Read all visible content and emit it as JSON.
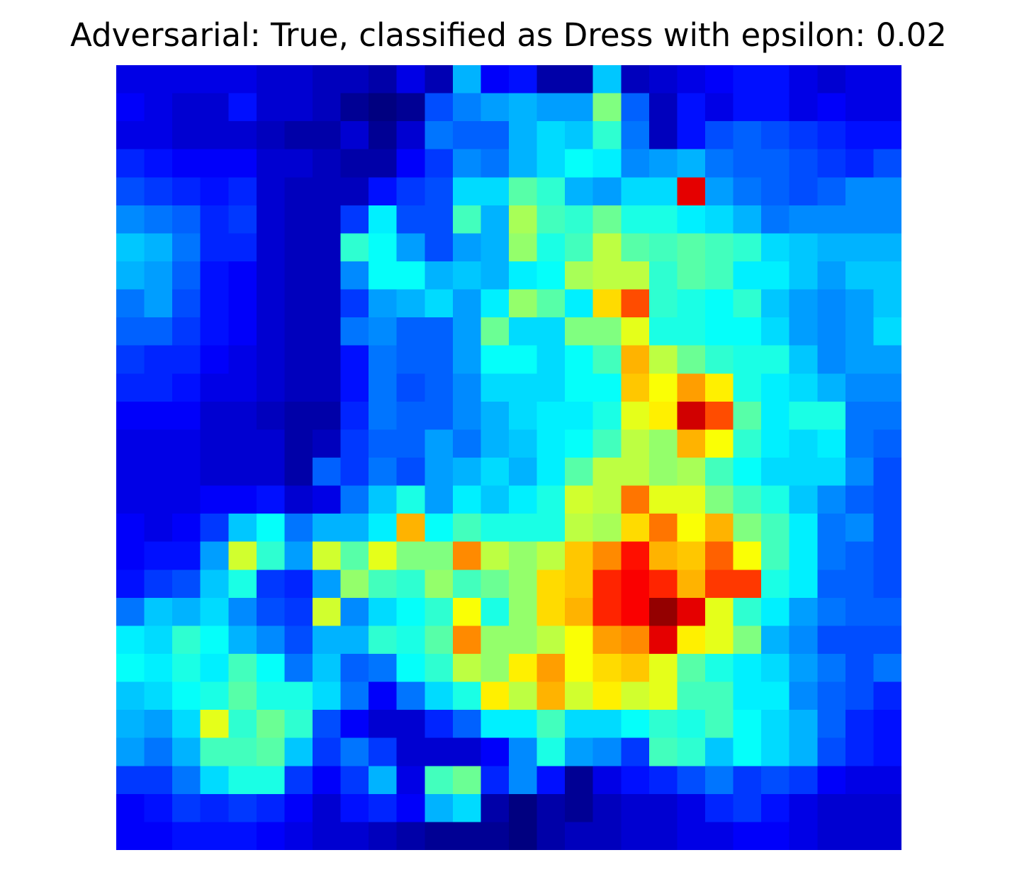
{
  "chart_data": {
    "type": "heatmap",
    "title": "Adversarial: True, classified as Dress with epsilon: 0.02",
    "colormap": "jet",
    "axes_visible": false,
    "grid": false,
    "rows": 28,
    "cols": 28,
    "vmin": 0,
    "vmax": 1,
    "values": [
      [
        0.1,
        0.1,
        0.1,
        0.1,
        0.1,
        0.08,
        0.08,
        0.06,
        0.06,
        0.04,
        0.1,
        0.05,
        0.3,
        0.12,
        0.14,
        0.04,
        0.04,
        0.32,
        0.06,
        0.08,
        0.1,
        0.12,
        0.14,
        0.14,
        0.1,
        0.08,
        0.1,
        0.1
      ],
      [
        0.12,
        0.1,
        0.08,
        0.08,
        0.14,
        0.08,
        0.08,
        0.06,
        0.02,
        0.0,
        0.02,
        0.2,
        0.25,
        0.28,
        0.3,
        0.28,
        0.28,
        0.5,
        0.22,
        0.06,
        0.14,
        0.1,
        0.14,
        0.14,
        0.1,
        0.12,
        0.1,
        0.1
      ],
      [
        0.1,
        0.1,
        0.08,
        0.08,
        0.08,
        0.06,
        0.04,
        0.04,
        0.08,
        0.02,
        0.08,
        0.24,
        0.22,
        0.22,
        0.3,
        0.34,
        0.32,
        0.42,
        0.24,
        0.06,
        0.14,
        0.2,
        0.22,
        0.2,
        0.18,
        0.16,
        0.14,
        0.14
      ],
      [
        0.16,
        0.14,
        0.12,
        0.12,
        0.12,
        0.08,
        0.08,
        0.06,
        0.04,
        0.04,
        0.12,
        0.18,
        0.26,
        0.24,
        0.3,
        0.34,
        0.38,
        0.36,
        0.26,
        0.28,
        0.3,
        0.24,
        0.22,
        0.22,
        0.2,
        0.18,
        0.16,
        0.2
      ],
      [
        0.2,
        0.18,
        0.16,
        0.14,
        0.16,
        0.08,
        0.06,
        0.06,
        0.06,
        0.14,
        0.18,
        0.2,
        0.34,
        0.34,
        0.46,
        0.42,
        0.3,
        0.28,
        0.34,
        0.34,
        0.9,
        0.28,
        0.24,
        0.22,
        0.2,
        0.22,
        0.26,
        0.26
      ],
      [
        0.26,
        0.24,
        0.22,
        0.16,
        0.18,
        0.08,
        0.06,
        0.06,
        0.18,
        0.36,
        0.2,
        0.2,
        0.44,
        0.3,
        0.54,
        0.44,
        0.42,
        0.48,
        0.4,
        0.4,
        0.36,
        0.34,
        0.3,
        0.24,
        0.26,
        0.26,
        0.26,
        0.26
      ],
      [
        0.32,
        0.3,
        0.24,
        0.16,
        0.16,
        0.08,
        0.06,
        0.06,
        0.42,
        0.38,
        0.28,
        0.2,
        0.28,
        0.3,
        0.52,
        0.4,
        0.44,
        0.56,
        0.46,
        0.44,
        0.46,
        0.44,
        0.42,
        0.34,
        0.32,
        0.3,
        0.3,
        0.3
      ],
      [
        0.3,
        0.28,
        0.22,
        0.14,
        0.12,
        0.08,
        0.06,
        0.06,
        0.26,
        0.38,
        0.38,
        0.3,
        0.32,
        0.3,
        0.36,
        0.38,
        0.54,
        0.56,
        0.56,
        0.42,
        0.46,
        0.44,
        0.36,
        0.36,
        0.32,
        0.28,
        0.32,
        0.32
      ],
      [
        0.24,
        0.28,
        0.2,
        0.14,
        0.12,
        0.08,
        0.06,
        0.06,
        0.18,
        0.28,
        0.3,
        0.34,
        0.28,
        0.36,
        0.52,
        0.46,
        0.36,
        0.66,
        0.8,
        0.42,
        0.4,
        0.38,
        0.42,
        0.32,
        0.28,
        0.26,
        0.28,
        0.32
      ],
      [
        0.22,
        0.22,
        0.18,
        0.14,
        0.12,
        0.08,
        0.06,
        0.06,
        0.24,
        0.26,
        0.22,
        0.22,
        0.28,
        0.48,
        0.34,
        0.34,
        0.5,
        0.5,
        0.6,
        0.4,
        0.4,
        0.38,
        0.38,
        0.34,
        0.28,
        0.26,
        0.28,
        0.34
      ],
      [
        0.18,
        0.16,
        0.16,
        0.12,
        0.1,
        0.08,
        0.06,
        0.06,
        0.14,
        0.24,
        0.22,
        0.22,
        0.28,
        0.38,
        0.38,
        0.34,
        0.38,
        0.44,
        0.7,
        0.56,
        0.48,
        0.42,
        0.4,
        0.4,
        0.32,
        0.26,
        0.28,
        0.28
      ],
      [
        0.16,
        0.16,
        0.14,
        0.1,
        0.1,
        0.08,
        0.06,
        0.06,
        0.14,
        0.24,
        0.2,
        0.22,
        0.26,
        0.34,
        0.34,
        0.34,
        0.38,
        0.38,
        0.68,
        0.62,
        0.72,
        0.64,
        0.4,
        0.36,
        0.34,
        0.3,
        0.26,
        0.26
      ],
      [
        0.12,
        0.12,
        0.12,
        0.08,
        0.08,
        0.06,
        0.04,
        0.04,
        0.16,
        0.24,
        0.22,
        0.22,
        0.26,
        0.3,
        0.34,
        0.36,
        0.36,
        0.4,
        0.6,
        0.64,
        0.92,
        0.8,
        0.46,
        0.36,
        0.4,
        0.4,
        0.24,
        0.24
      ],
      [
        0.1,
        0.1,
        0.1,
        0.08,
        0.08,
        0.08,
        0.04,
        0.06,
        0.18,
        0.22,
        0.22,
        0.28,
        0.24,
        0.3,
        0.32,
        0.36,
        0.38,
        0.44,
        0.56,
        0.52,
        0.7,
        0.62,
        0.42,
        0.36,
        0.34,
        0.36,
        0.24,
        0.22
      ],
      [
        0.1,
        0.1,
        0.1,
        0.08,
        0.08,
        0.08,
        0.04,
        0.22,
        0.18,
        0.24,
        0.2,
        0.28,
        0.3,
        0.34,
        0.3,
        0.36,
        0.46,
        0.56,
        0.56,
        0.52,
        0.54,
        0.44,
        0.38,
        0.34,
        0.34,
        0.34,
        0.26,
        0.2
      ],
      [
        0.1,
        0.1,
        0.1,
        0.12,
        0.12,
        0.14,
        0.08,
        0.1,
        0.24,
        0.32,
        0.4,
        0.28,
        0.36,
        0.32,
        0.36,
        0.4,
        0.58,
        0.56,
        0.76,
        0.6,
        0.6,
        0.5,
        0.44,
        0.4,
        0.32,
        0.26,
        0.22,
        0.2
      ],
      [
        0.12,
        0.1,
        0.12,
        0.18,
        0.32,
        0.38,
        0.24,
        0.3,
        0.3,
        0.36,
        0.7,
        0.38,
        0.44,
        0.4,
        0.4,
        0.4,
        0.56,
        0.54,
        0.66,
        0.76,
        0.62,
        0.7,
        0.5,
        0.44,
        0.36,
        0.24,
        0.26,
        0.2
      ],
      [
        0.12,
        0.14,
        0.14,
        0.28,
        0.58,
        0.42,
        0.28,
        0.58,
        0.46,
        0.6,
        0.5,
        0.5,
        0.74,
        0.56,
        0.52,
        0.56,
        0.68,
        0.74,
        0.86,
        0.7,
        0.68,
        0.78,
        0.62,
        0.44,
        0.36,
        0.24,
        0.22,
        0.2
      ],
      [
        0.14,
        0.18,
        0.2,
        0.32,
        0.4,
        0.18,
        0.16,
        0.28,
        0.52,
        0.44,
        0.42,
        0.52,
        0.44,
        0.48,
        0.52,
        0.66,
        0.68,
        0.84,
        0.88,
        0.84,
        0.7,
        0.82,
        0.82,
        0.4,
        0.36,
        0.22,
        0.22,
        0.2
      ],
      [
        0.24,
        0.32,
        0.3,
        0.34,
        0.26,
        0.2,
        0.18,
        0.58,
        0.26,
        0.34,
        0.38,
        0.42,
        0.62,
        0.4,
        0.52,
        0.66,
        0.7,
        0.84,
        0.88,
        0.98,
        0.9,
        0.6,
        0.42,
        0.36,
        0.28,
        0.24,
        0.22,
        0.22
      ],
      [
        0.36,
        0.34,
        0.42,
        0.38,
        0.3,
        0.26,
        0.2,
        0.3,
        0.3,
        0.42,
        0.4,
        0.46,
        0.74,
        0.52,
        0.52,
        0.56,
        0.62,
        0.72,
        0.74,
        0.9,
        0.64,
        0.6,
        0.5,
        0.3,
        0.26,
        0.2,
        0.2,
        0.2
      ],
      [
        0.38,
        0.36,
        0.4,
        0.36,
        0.44,
        0.38,
        0.24,
        0.32,
        0.22,
        0.24,
        0.38,
        0.42,
        0.56,
        0.52,
        0.64,
        0.72,
        0.62,
        0.66,
        0.68,
        0.6,
        0.46,
        0.4,
        0.36,
        0.34,
        0.28,
        0.24,
        0.2,
        0.24
      ],
      [
        0.32,
        0.34,
        0.38,
        0.4,
        0.46,
        0.4,
        0.4,
        0.34,
        0.24,
        0.12,
        0.24,
        0.34,
        0.4,
        0.64,
        0.56,
        0.7,
        0.58,
        0.64,
        0.58,
        0.6,
        0.44,
        0.44,
        0.36,
        0.36,
        0.26,
        0.22,
        0.2,
        0.16
      ],
      [
        0.3,
        0.28,
        0.34,
        0.6,
        0.42,
        0.48,
        0.42,
        0.2,
        0.12,
        0.08,
        0.08,
        0.16,
        0.22,
        0.36,
        0.36,
        0.44,
        0.34,
        0.34,
        0.38,
        0.42,
        0.4,
        0.44,
        0.38,
        0.34,
        0.3,
        0.22,
        0.16,
        0.14
      ],
      [
        0.28,
        0.24,
        0.3,
        0.44,
        0.44,
        0.46,
        0.32,
        0.18,
        0.24,
        0.18,
        0.08,
        0.08,
        0.08,
        0.12,
        0.26,
        0.4,
        0.28,
        0.26,
        0.18,
        0.44,
        0.42,
        0.32,
        0.38,
        0.34,
        0.3,
        0.2,
        0.16,
        0.14
      ],
      [
        0.18,
        0.18,
        0.24,
        0.34,
        0.4,
        0.4,
        0.18,
        0.12,
        0.18,
        0.3,
        0.1,
        0.44,
        0.48,
        0.16,
        0.26,
        0.14,
        0.02,
        0.1,
        0.14,
        0.16,
        0.2,
        0.24,
        0.18,
        0.2,
        0.18,
        0.12,
        0.1,
        0.1
      ],
      [
        0.12,
        0.14,
        0.18,
        0.16,
        0.18,
        0.16,
        0.12,
        0.08,
        0.14,
        0.16,
        0.12,
        0.3,
        0.34,
        0.04,
        0.0,
        0.04,
        0.02,
        0.06,
        0.08,
        0.08,
        0.1,
        0.16,
        0.18,
        0.14,
        0.1,
        0.08,
        0.08,
        0.08
      ],
      [
        0.12,
        0.12,
        0.14,
        0.14,
        0.14,
        0.12,
        0.1,
        0.08,
        0.08,
        0.06,
        0.04,
        0.02,
        0.02,
        0.02,
        0.0,
        0.04,
        0.06,
        0.06,
        0.08,
        0.08,
        0.1,
        0.1,
        0.12,
        0.12,
        0.1,
        0.08,
        0.08,
        0.08
      ]
    ]
  }
}
